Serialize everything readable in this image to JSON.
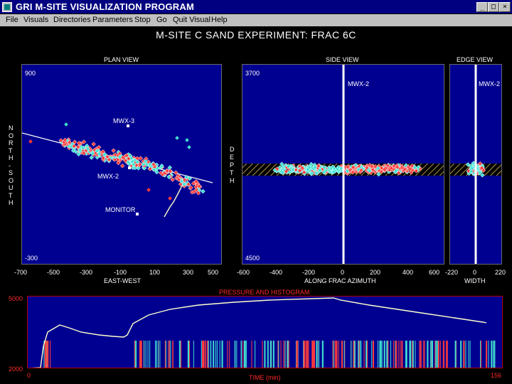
{
  "window": {
    "title": "GRI M-SITE VISUALIZATION PROGRAM",
    "controls": [
      "_",
      "□",
      "×"
    ]
  },
  "menu": [
    "File",
    "Visuals",
    "Directories",
    "Parameters",
    "Stop",
    "Go",
    "Quit Visual",
    "Help"
  ],
  "main_title": "M-SITE C SAND EXPERIMENT: FRAC 6C",
  "plan_view": {
    "title": "PLAN VIEW",
    "y_top": "900",
    "y_bottom": "-300",
    "y_axis_letters": [
      "N",
      "O",
      "R",
      "T",
      "H",
      "-",
      "S",
      "O",
      "U",
      "T",
      "H"
    ],
    "x_ticks": [
      "-700",
      "-500",
      "-300",
      "-100",
      "100",
      "300",
      "500"
    ],
    "x_label": "EAST-WEST",
    "wells": [
      "MWX-3",
      "MWX-2",
      "MONITOR"
    ]
  },
  "side_view": {
    "title": "SIDE VIEW",
    "y_top": "3700",
    "y_bottom": "4500",
    "y_axis_letters": [
      "D",
      "E",
      "P",
      "T",
      "H"
    ],
    "x_ticks": [
      "-600",
      "-400",
      "-200",
      "0",
      "200",
      "400",
      "600"
    ],
    "x_label": "ALONG FRAC AZIMUTH",
    "well": "MWX-2"
  },
  "edge_view": {
    "title": "EDGE VIEW",
    "x_ticks": [
      "-220",
      "0",
      "220"
    ],
    "x_label": "WIDTH",
    "well": "MWX-2"
  },
  "pressure": {
    "title": "PRESSURE AND HISTOGRAM",
    "y_top": "5000",
    "y_bottom": "2000",
    "x_start": "0",
    "x_end": "156",
    "x_label": "TIME (min)"
  },
  "colors": {
    "plot_bg": "#000090",
    "event_red": "#ff3b3b",
    "event_cyan": "#40e0d0",
    "curve": "#ffffcc",
    "title_bar": "#000080"
  }
}
